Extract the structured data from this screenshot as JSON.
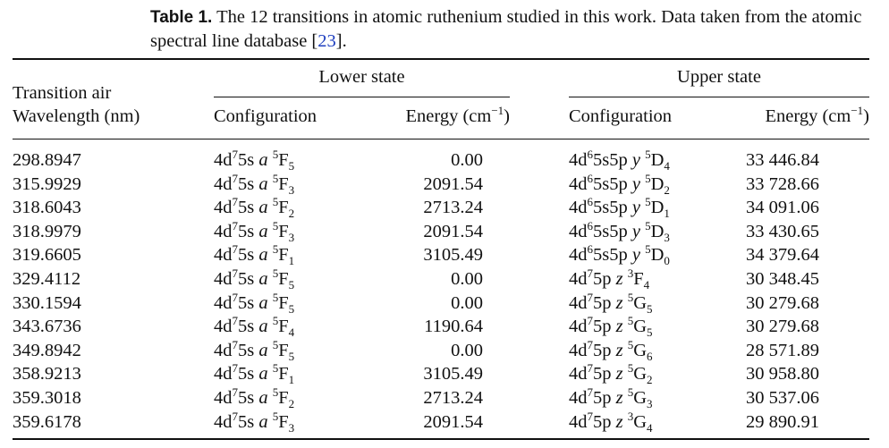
{
  "caption": {
    "label": "Table 1.",
    "text": "The 12 transitions in atomic ruthenium studied in this work. Data taken from the atomic spectral line database [",
    "ref": "23",
    "end": "]."
  },
  "headers": {
    "transition_line1": "Transition air",
    "transition_line2": "Wavelength (nm)",
    "lower_group": "Lower state",
    "upper_group": "Upper state",
    "lower_config": "Configuration",
    "lower_energy": "Energy (cm",
    "upper_config": "Configuration",
    "upper_energy": "Energy (cm",
    "energy_exp": "−1",
    "energy_close": ")"
  },
  "rows": [
    {
      "wl": "298.8947",
      "lc_base": "4d",
      "lc_exp": "7",
      "lc_mid": "5s",
      "lc_letter": "a",
      "lc_mult": "5",
      "lc_term": "F",
      "lc_j": "5",
      "le": "0.00",
      "uc_base": "4d",
      "uc_exp": "6",
      "uc_mid": "5s5p",
      "uc_letter": "y",
      "uc_mult": "5",
      "uc_term": "D",
      "uc_j": "4",
      "ue": "33 446.84"
    },
    {
      "wl": "315.9929",
      "lc_base": "4d",
      "lc_exp": "7",
      "lc_mid": "5s",
      "lc_letter": "a",
      "lc_mult": "5",
      "lc_term": "F",
      "lc_j": "3",
      "le": "2091.54",
      "uc_base": "4d",
      "uc_exp": "6",
      "uc_mid": "5s5p",
      "uc_letter": "y",
      "uc_mult": "5",
      "uc_term": "D",
      "uc_j": "2",
      "ue": "33 728.66"
    },
    {
      "wl": "318.6043",
      "lc_base": "4d",
      "lc_exp": "7",
      "lc_mid": "5s",
      "lc_letter": "a",
      "lc_mult": "5",
      "lc_term": "F",
      "lc_j": "2",
      "le": "2713.24",
      "uc_base": "4d",
      "uc_exp": "6",
      "uc_mid": "5s5p",
      "uc_letter": "y",
      "uc_mult": "5",
      "uc_term": "D",
      "uc_j": "1",
      "ue": "34 091.06"
    },
    {
      "wl": "318.9979",
      "lc_base": "4d",
      "lc_exp": "7",
      "lc_mid": "5s",
      "lc_letter": "a",
      "lc_mult": "5",
      "lc_term": "F",
      "lc_j": "3",
      "le": "2091.54",
      "uc_base": "4d",
      "uc_exp": "6",
      "uc_mid": "5s5p",
      "uc_letter": "y",
      "uc_mult": "5",
      "uc_term": "D",
      "uc_j": "3",
      "ue": "33 430.65"
    },
    {
      "wl": "319.6605",
      "lc_base": "4d",
      "lc_exp": "7",
      "lc_mid": "5s",
      "lc_letter": "a",
      "lc_mult": "5",
      "lc_term": "F",
      "lc_j": "1",
      "le": "3105.49",
      "uc_base": "4d",
      "uc_exp": "6",
      "uc_mid": "5s5p",
      "uc_letter": "y",
      "uc_mult": "5",
      "uc_term": "D",
      "uc_j": "0",
      "ue": "34 379.64"
    },
    {
      "wl": "329.4112",
      "lc_base": "4d",
      "lc_exp": "7",
      "lc_mid": "5s",
      "lc_letter": "a",
      "lc_mult": "5",
      "lc_term": "F",
      "lc_j": "5",
      "le": "0.00",
      "uc_base": "4d",
      "uc_exp": "7",
      "uc_mid": "5p",
      "uc_letter": "z",
      "uc_mult": "3",
      "uc_term": "F",
      "uc_j": "4",
      "ue": "30 348.45"
    },
    {
      "wl": "330.1594",
      "lc_base": "4d",
      "lc_exp": "7",
      "lc_mid": "5s",
      "lc_letter": "a",
      "lc_mult": "5",
      "lc_term": "F",
      "lc_j": "5",
      "le": "0.00",
      "uc_base": "4d",
      "uc_exp": "7",
      "uc_mid": "5p",
      "uc_letter": "z",
      "uc_mult": "5",
      "uc_term": "G",
      "uc_j": "5",
      "ue": "30 279.68"
    },
    {
      "wl": "343.6736",
      "lc_base": "4d",
      "lc_exp": "7",
      "lc_mid": "5s",
      "lc_letter": "a",
      "lc_mult": "5",
      "lc_term": "F",
      "lc_j": "4",
      "le": "1190.64",
      "uc_base": "4d",
      "uc_exp": "7",
      "uc_mid": "5p",
      "uc_letter": "z",
      "uc_mult": "5",
      "uc_term": "G",
      "uc_j": "5",
      "ue": "30 279.68"
    },
    {
      "wl": "349.8942",
      "lc_base": "4d",
      "lc_exp": "7",
      "lc_mid": "5s",
      "lc_letter": "a",
      "lc_mult": "5",
      "lc_term": "F",
      "lc_j": "5",
      "le": "0.00",
      "uc_base": "4d",
      "uc_exp": "7",
      "uc_mid": "5p",
      "uc_letter": "z",
      "uc_mult": "5",
      "uc_term": "G",
      "uc_j": "6",
      "ue": "28 571.89"
    },
    {
      "wl": "358.9213",
      "lc_base": "4d",
      "lc_exp": "7",
      "lc_mid": "5s",
      "lc_letter": "a",
      "lc_mult": "5",
      "lc_term": "F",
      "lc_j": "1",
      "le": "3105.49",
      "uc_base": "4d",
      "uc_exp": "7",
      "uc_mid": "5p",
      "uc_letter": "z",
      "uc_mult": "5",
      "uc_term": "G",
      "uc_j": "2",
      "ue": "30 958.80"
    },
    {
      "wl": "359.3018",
      "lc_base": "4d",
      "lc_exp": "7",
      "lc_mid": "5s",
      "lc_letter": "a",
      "lc_mult": "5",
      "lc_term": "F",
      "lc_j": "2",
      "le": "2713.24",
      "uc_base": "4d",
      "uc_exp": "7",
      "uc_mid": "5p",
      "uc_letter": "z",
      "uc_mult": "5",
      "uc_term": "G",
      "uc_j": "3",
      "ue": "30 537.06"
    },
    {
      "wl": "359.6178",
      "lc_base": "4d",
      "lc_exp": "7",
      "lc_mid": "5s",
      "lc_letter": "a",
      "lc_mult": "5",
      "lc_term": "F",
      "lc_j": "3",
      "le": "2091.54",
      "uc_base": "4d",
      "uc_exp": "7",
      "uc_mid": "5p",
      "uc_letter": "z",
      "uc_mult": "3",
      "uc_term": "G",
      "uc_j": "4",
      "ue": "29 890.91"
    }
  ],
  "colors": {
    "text": "#111111",
    "link": "#1f3fbf",
    "rule": "#111111"
  }
}
